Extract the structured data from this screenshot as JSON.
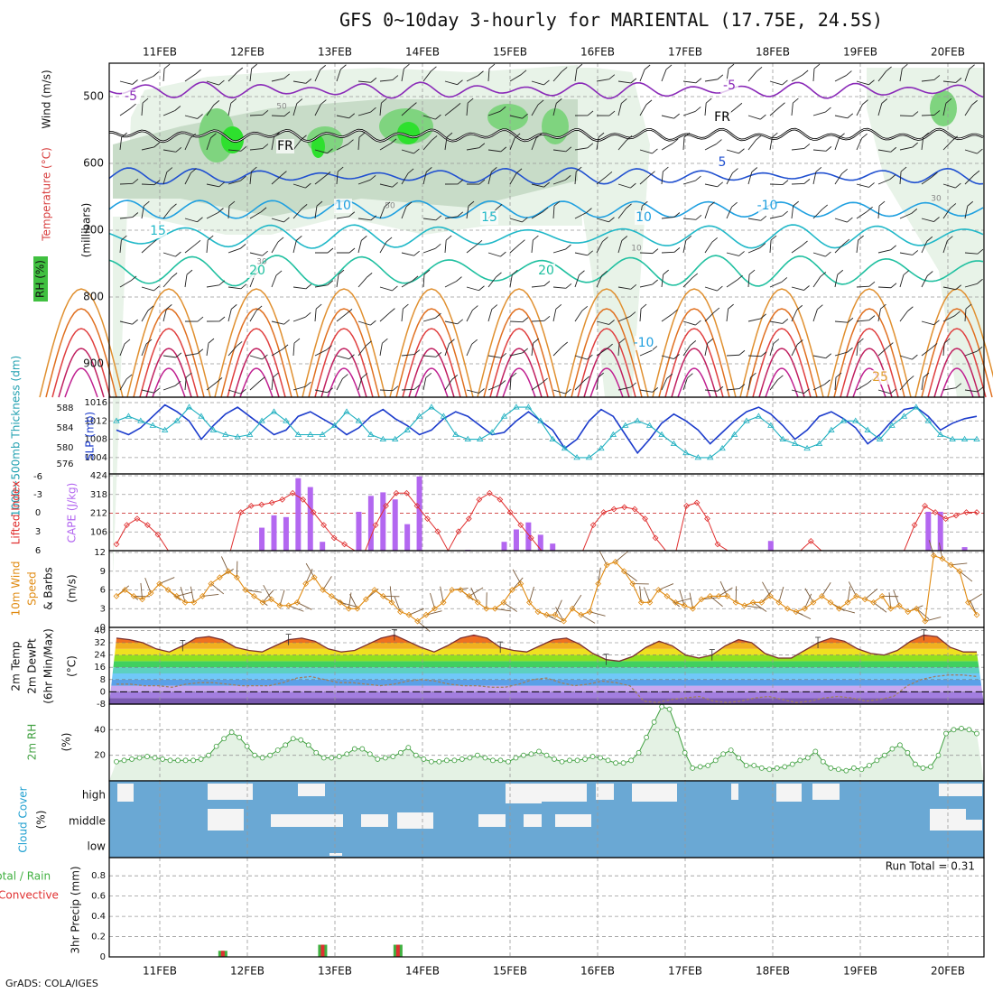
{
  "title": "GFS 0~10day 3-hourly for MARIENTAL (17.75E, 24.5S)",
  "credit": "GrADS: COLA/IGES",
  "chart_data": [
    {
      "type": "contour",
      "panel": "upper-air",
      "date_labels": [
        "11FEB",
        "12FEB",
        "13FEB",
        "14FEB",
        "15FEB",
        "16FEB",
        "17FEB",
        "18FEB",
        "19FEB",
        "20FEB"
      ],
      "ylabel_parts": [
        "RH (%)",
        "Temperature (°C)",
        "Wind (m/s)"
      ],
      "ylabel_unit": "(millibars)",
      "y_ticks": [
        500,
        600,
        700,
        800,
        900
      ],
      "ylim": [
        450,
        950
      ],
      "contour_labels": [
        "-5",
        "FR",
        "-5",
        "FR",
        "5",
        "10",
        "-10",
        "15",
        "15",
        "10",
        "20",
        "20",
        "25",
        "-10"
      ],
      "rh_shading_levels": [
        30,
        50,
        70,
        90
      ],
      "rh_labels": [
        "50",
        "30",
        "10",
        "50",
        "30"
      ]
    },
    {
      "type": "line",
      "panel": "thickness-slp",
      "ylabel_left": "1000~500mb Thickness (dm)",
      "ylabel_right": "SLP (mb)",
      "y_ticks_left": [
        576,
        580,
        584,
        588
      ],
      "y_ticks_right": [
        1004,
        1008,
        1012,
        1016
      ],
      "ylim_right": [
        1002,
        1016
      ],
      "series": [
        {
          "name": "SLP (mb)",
          "color": "#1c3ccc",
          "values": [
            1010,
            1009,
            1010.5,
            1013,
            1015.5,
            1014,
            1012,
            1008,
            1011,
            1013.5,
            1015,
            1013,
            1011,
            1009,
            1010,
            1013,
            1014,
            1012.5,
            1011,
            1009,
            1010.5,
            1013,
            1014.5,
            1012.5,
            1011,
            1009,
            1010,
            1012.5,
            1014,
            1013,
            1011,
            1009,
            1009.5,
            1012,
            1014,
            1012,
            1010,
            1006,
            1008,
            1012,
            1014.5,
            1013,
            1009,
            1005,
            1008,
            1011.5,
            1013.5,
            1012,
            1010,
            1007,
            1009.5,
            1012,
            1014,
            1015,
            1013.5,
            1011,
            1008,
            1010,
            1013,
            1014,
            1012.5,
            1010.5,
            1007,
            1009,
            1012,
            1014.5,
            1015,
            1013,
            1010,
            1011.5,
            1012.5,
            1013
          ]
        },
        {
          "name": "1000~500mb Thickness (dm)",
          "color": "#20b0c0",
          "values": [
            1012,
            1013,
            1012,
            1011,
            1010,
            1012,
            1015,
            1013,
            1010,
            1009,
            1008.5,
            1009,
            1012,
            1014,
            1012,
            1009,
            1009,
            1009,
            1011,
            1014,
            1012,
            1009,
            1008,
            1008,
            1010,
            1013,
            1015,
            1013,
            1009,
            1008,
            1008,
            1009.5,
            1013,
            1015,
            1015,
            1012,
            1008,
            1006,
            1004,
            1004,
            1006,
            1009,
            1011,
            1012,
            1011,
            1009,
            1007,
            1005,
            1004,
            1004,
            1006,
            1009,
            1012,
            1013,
            1011,
            1008,
            1007,
            1006,
            1007,
            1010,
            1012,
            1012,
            1010,
            1008,
            1011,
            1013,
            1015,
            1012,
            1009,
            1008,
            1008,
            1008
          ]
        }
      ]
    },
    {
      "type": "bar",
      "panel": "cape-lifted-index",
      "ylabel_left": "Lifted Index",
      "ylabel_right": "CAPE (J/kg)",
      "y_ticks_left": [
        "-6",
        "-3",
        "0",
        "3",
        "6"
      ],
      "y_ticks_right": [
        106,
        212,
        318,
        424
      ],
      "ylim_right": [
        0,
        424
      ],
      "series": [
        {
          "name": "CAPE (J/kg)",
          "color": "#b367f0",
          "values": [
            0,
            0,
            0,
            0,
            0,
            0,
            0,
            0,
            0,
            0,
            0,
            0,
            130,
            200,
            190,
            410,
            360,
            50,
            0,
            0,
            220,
            310,
            330,
            290,
            150,
            420,
            0,
            0,
            0,
            5,
            0,
            0,
            50,
            120,
            160,
            90,
            40,
            0,
            0,
            0,
            0,
            0,
            0,
            0,
            0,
            0,
            0,
            0,
            0,
            0,
            0,
            0,
            0,
            0,
            55,
            0,
            0,
            0,
            0,
            0,
            0,
            0,
            0,
            0,
            0,
            0,
            0,
            220,
            220,
            0,
            20,
            0
          ]
        },
        {
          "name": "Lifted Index",
          "color": "#e03030",
          "values": [
            5,
            2,
            1,
            2,
            3.5,
            6,
            6,
            6,
            6,
            6,
            6,
            6,
            0,
            -1,
            -1.2,
            -1.5,
            -2,
            -3,
            -2,
            0,
            2,
            4,
            5,
            6,
            6,
            2,
            -1,
            -3,
            -3,
            -1,
            1,
            3,
            6,
            3,
            1,
            -2,
            -3,
            -2,
            0,
            2,
            4,
            6,
            6,
            6,
            6,
            6,
            2,
            0,
            -0.5,
            -0.8,
            -0.5,
            1,
            4,
            6,
            6,
            -1,
            -1.5,
            1,
            5,
            6,
            6,
            6,
            6,
            6,
            6,
            6,
            6,
            4.5,
            6,
            6,
            6,
            6,
            6,
            6,
            6,
            6,
            6,
            2,
            -1,
            0,
            1,
            0.5,
            0,
            0
          ]
        }
      ]
    },
    {
      "type": "line",
      "panel": "wind-10m",
      "ylabel": "10m Wind Speed (m/s) & Barbs",
      "y_ticks": [
        0,
        3,
        6,
        9,
        12
      ],
      "ylim": [
        0,
        12
      ],
      "series": [
        {
          "name": "10m Wind Speed",
          "color": "#e08a10",
          "values": [
            5,
            6,
            5,
            4.5,
            5.5,
            7,
            6,
            5,
            4,
            4,
            5,
            7,
            8,
            9,
            8,
            6,
            5,
            4,
            4.5,
            3.5,
            3.5,
            4,
            7,
            8,
            6,
            5,
            4,
            3,
            3,
            4.5,
            6,
            5,
            4,
            2.5,
            2,
            1,
            2,
            3,
            4,
            6,
            6,
            5,
            4,
            3,
            3,
            4,
            6,
            7,
            4,
            2.5,
            2,
            2,
            1,
            3,
            2,
            2.5,
            7,
            10,
            10.5,
            9,
            7,
            4,
            4,
            6,
            5,
            4,
            3.5,
            3,
            4.5,
            5,
            5,
            5,
            4,
            3.5,
            4,
            4,
            5,
            4,
            3,
            2.5,
            3,
            4,
            5,
            4,
            3,
            4,
            5,
            4.5,
            4,
            5,
            3,
            3.5,
            2.5,
            3,
            1,
            11.5,
            11,
            10,
            9,
            4,
            2
          ]
        }
      ]
    },
    {
      "type": "area",
      "panel": "temp-2m",
      "ylabel": "2m Temp 2m DewPt (6hr Min/Max) (°C)",
      "y_ticks": [
        -8,
        0,
        8,
        16,
        24,
        32,
        40
      ],
      "ylim": [
        -8,
        42
      ],
      "series": [
        {
          "name": "2m Temp",
          "color": "#7a3030",
          "values": [
            35,
            34,
            32,
            28,
            26,
            30,
            35,
            36,
            34,
            29,
            27,
            26,
            30,
            34,
            35,
            33,
            28,
            26,
            27,
            31,
            35,
            37,
            33,
            29,
            26,
            30,
            35,
            37,
            35,
            29,
            27,
            26,
            30,
            34,
            35,
            31,
            25,
            21,
            20,
            23,
            29,
            33,
            30,
            24,
            22,
            24,
            30,
            34,
            32,
            25,
            22,
            22,
            27,
            32,
            35,
            33,
            28,
            25,
            24,
            27,
            33,
            37,
            36,
            29,
            26,
            26
          ]
        },
        {
          "name": "2m DewPt",
          "color": "#a08060",
          "values": [
            5,
            5,
            4,
            4,
            3,
            5,
            6,
            6,
            5,
            4,
            4,
            4,
            6,
            9,
            10,
            8,
            6,
            6,
            5,
            4,
            5,
            7,
            8,
            7,
            5,
            4,
            4,
            3,
            3,
            5,
            8,
            9,
            6,
            4,
            5,
            7,
            6,
            4,
            -6,
            -7,
            -5,
            -4,
            -3,
            -6,
            -7,
            -6,
            -4,
            -3,
            -5,
            -7,
            -6,
            -4,
            -3,
            -4,
            -6,
            -5,
            -3,
            4,
            8,
            10,
            11,
            11,
            10
          ]
        }
      ]
    },
    {
      "type": "area",
      "panel": "rh-2m",
      "ylabel": "2m RH (%)",
      "y_ticks": [
        20,
        40
      ],
      "ylim": [
        0,
        60
      ],
      "series": [
        {
          "name": "2m RH",
          "color": "#40a040",
          "values": [
            15,
            16,
            17,
            18,
            19,
            18,
            17,
            16,
            16,
            16,
            16,
            17,
            20,
            27,
            33,
            38,
            34,
            27,
            20,
            18,
            20,
            24,
            28,
            33,
            32,
            28,
            22,
            18,
            18,
            19,
            21,
            25,
            25,
            21,
            17,
            18,
            19,
            22,
            26,
            20,
            17,
            15,
            15,
            16,
            16,
            17,
            18,
            20,
            18,
            16,
            16,
            15,
            18,
            20,
            21,
            23,
            20,
            17,
            15,
            16,
            16,
            17,
            19,
            18,
            16,
            14,
            14,
            16,
            22,
            34,
            46,
            58,
            56,
            40,
            22,
            10,
            11,
            12,
            16,
            21,
            24,
            18,
            12,
            12,
            10,
            9,
            10,
            11,
            13,
            16,
            18,
            23,
            15,
            10,
            9,
            8,
            10,
            9,
            12,
            16,
            20,
            25,
            28,
            22,
            13,
            10,
            11,
            20,
            37,
            40,
            41,
            40,
            37
          ]
        }
      ]
    },
    {
      "type": "heatmap",
      "panel": "cloud-cover",
      "ylabel": "Cloud Cover (%)",
      "row_labels": [
        "high",
        "middle",
        "low"
      ],
      "colors": {
        "cloud": "#6aa8d4",
        "clear": "#f4f4f4"
      }
    },
    {
      "type": "bar",
      "panel": "precip",
      "ylabel_left": "Total / Rain",
      "ylabel_left2": "Convective",
      "ylabel": "3hr Precip (mm)",
      "y_ticks": [
        0,
        0.2,
        0.4,
        0.6,
        0.8
      ],
      "ylim": [
        0,
        0.98
      ],
      "run_total_label": "Run Total = 0.31",
      "series": [
        {
          "name": "Total / Rain",
          "color": "#40b040",
          "bars": [
            {
              "day": 1.72,
              "value": 0.06
            },
            {
              "day": 2.86,
              "value": 0.12
            },
            {
              "day": 3.72,
              "value": 0.12
            }
          ]
        },
        {
          "name": "Convective",
          "color": "#e03030",
          "bars": [
            {
              "day": 1.72,
              "value": 0.06
            },
            {
              "day": 2.86,
              "value": 0.12
            },
            {
              "day": 3.72,
              "value": 0.12
            }
          ]
        }
      ]
    }
  ]
}
